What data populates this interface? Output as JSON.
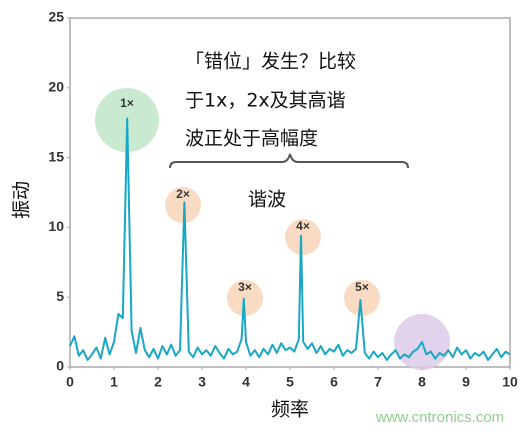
{
  "chart_data": {
    "type": "line",
    "x": [
      0,
      0.1,
      0.2,
      0.3,
      0.4,
      0.5,
      0.6,
      0.7,
      0.8,
      0.9,
      1.0,
      1.1,
      1.2,
      1.3,
      1.4,
      1.5,
      1.6,
      1.7,
      1.8,
      1.9,
      2.0,
      2.1,
      2.2,
      2.3,
      2.4,
      2.5,
      2.6,
      2.7,
      2.8,
      2.9,
      3.0,
      3.1,
      3.2,
      3.3,
      3.4,
      3.5,
      3.6,
      3.7,
      3.8,
      3.9,
      3.95,
      4.0,
      4.1,
      4.2,
      4.3,
      4.4,
      4.5,
      4.6,
      4.7,
      4.8,
      4.9,
      5.0,
      5.1,
      5.2,
      5.25,
      5.3,
      5.4,
      5.5,
      5.6,
      5.7,
      5.8,
      5.9,
      6.0,
      6.1,
      6.2,
      6.3,
      6.4,
      6.5,
      6.6,
      6.7,
      6.8,
      6.9,
      7.0,
      7.1,
      7.2,
      7.3,
      7.4,
      7.5,
      7.6,
      7.7,
      7.8,
      7.9,
      8.0,
      8.1,
      8.2,
      8.3,
      8.4,
      8.5,
      8.6,
      8.7,
      8.8,
      8.9,
      9.0,
      9.1,
      9.2,
      9.3,
      9.4,
      9.5,
      9.6,
      9.7,
      9.8,
      9.9,
      10.0
    ],
    "values": [
      1.5,
      2.2,
      0.8,
      1.2,
      0.5,
      0.9,
      1.4,
      0.6,
      2.1,
      0.9,
      1.8,
      3.8,
      3.5,
      17.8,
      2.6,
      1.0,
      2.8,
      1.2,
      0.7,
      1.3,
      0.6,
      1.5,
      0.9,
      1.6,
      0.8,
      1.2,
      11.8,
      1.1,
      0.7,
      1.4,
      0.9,
      1.2,
      0.8,
      1.5,
      1.0,
      0.6,
      1.3,
      0.9,
      1.1,
      2.0,
      4.9,
      1.8,
      0.8,
      1.2,
      0.7,
      1.3,
      0.9,
      1.6,
      1.0,
      1.7,
      1.2,
      1.4,
      1.1,
      2.0,
      9.4,
      1.8,
      1.3,
      1.7,
      1.0,
      1.5,
      0.9,
      1.3,
      1.1,
      1.6,
      0.8,
      1.2,
      1.0,
      1.3,
      4.8,
      1.0,
      0.6,
      1.1,
      0.7,
      1.0,
      0.5,
      0.9,
      1.2,
      0.6,
      0.9,
      0.7,
      1.1,
      1.3,
      1.8,
      0.9,
      1.1,
      0.6,
      1.0,
      0.8,
      1.2,
      0.7,
      1.4,
      0.9,
      1.2,
      0.6,
      1.0,
      0.8,
      1.1,
      0.5,
      0.9,
      1.3,
      0.7,
      1.1,
      0.9
    ],
    "color": "#19a7c6",
    "xlim": [
      0,
      10
    ],
    "xticks": [
      0,
      1,
      2,
      3,
      4,
      5,
      6,
      7,
      8,
      9,
      10
    ],
    "ylim": [
      0,
      25
    ],
    "yticks": [
      0,
      5,
      10,
      15,
      20,
      25
    ],
    "xlabel": "频率",
    "ylabel": "振动",
    "annotations": [
      "「错位」发生？比较",
      "于1x，2x及其高谐",
      "波正处于高幅度"
    ],
    "harmonics_label": "谐波",
    "markers": [
      "1×",
      "2×",
      "3×",
      "4×",
      "5×"
    ],
    "watermark": "www.cntronics.com"
  }
}
